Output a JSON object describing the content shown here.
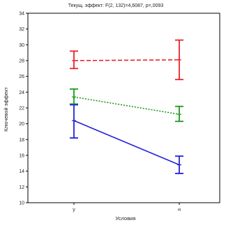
{
  "chart_data": {
    "type": "line",
    "title": "Текущ. эффект: F(2, 132)=4,6087, p=,0093",
    "xlabel": "Условия",
    "ylabel": "Ключевой эффект",
    "categories": [
      "у",
      "н"
    ],
    "ylim": [
      10,
      34
    ],
    "yticks": [
      10,
      12,
      14,
      16,
      18,
      20,
      22,
      24,
      26,
      28,
      30,
      32,
      34
    ],
    "grid": false,
    "series": [
      {
        "color": "#e8222a",
        "line_style": "dashed",
        "values": [
          28.0,
          28.1
        ],
        "error_low": [
          27.0,
          25.6
        ],
        "error_high": [
          29.2,
          30.6
        ]
      },
      {
        "color": "#1a9a1a",
        "line_style": "dotted",
        "values": [
          23.4,
          21.2
        ],
        "error_low": [
          22.5,
          20.3
        ],
        "error_high": [
          24.4,
          22.2
        ]
      },
      {
        "color": "#2222dd",
        "line_style": "solid",
        "values": [
          20.4,
          14.8
        ],
        "error_low": [
          18.2,
          13.7
        ],
        "error_high": [
          22.4,
          15.9
        ]
      }
    ]
  }
}
